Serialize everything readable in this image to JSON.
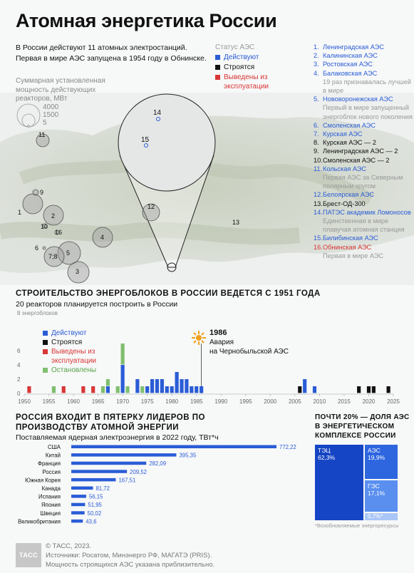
{
  "title": "Атомная энергетика России",
  "intro": "В России действуют 11 атомных электростанций. Первая в мире АЭС запущена в 1954 году в Обнинске.",
  "capacity_legend": {
    "label": "Суммарная установленная мощность действующих реакторов, МВт",
    "values": [
      "4000",
      "1500",
      "5"
    ]
  },
  "status_legend": {
    "title": "Статус АЭС",
    "items": [
      {
        "label": "Действуют",
        "color": "#2a5cd6"
      },
      {
        "label": "Строятся",
        "color": "#111111"
      },
      {
        "label": "Выведены из эксплуатации",
        "color": "#d93636"
      }
    ]
  },
  "plants": [
    {
      "num": "1.",
      "name": "Ленинградская АЭС",
      "status": "active"
    },
    {
      "num": "2.",
      "name": "Калининская АЭС",
      "status": "active"
    },
    {
      "num": "3.",
      "name": "Ростовская АЭС",
      "status": "active"
    },
    {
      "num": "4.",
      "name": "Балаковская АЭС",
      "status": "active",
      "note": "19 раз признавалась лучшей в мире"
    },
    {
      "num": "5.",
      "name": "Нововоронежская АЭС",
      "status": "active",
      "note": "Первый в мире запущенный энергоблок нового поколения"
    },
    {
      "num": "6.",
      "name": "Смоленская АЭС",
      "status": "active"
    },
    {
      "num": "7.",
      "name": "Курская АЭС",
      "status": "active"
    },
    {
      "num": "8.",
      "name": "Курская АЭС — 2",
      "status": "building"
    },
    {
      "num": "9.",
      "name": "Ленинградская АЭС — 2",
      "status": "building"
    },
    {
      "num": "10.",
      "name": "Смоленская АЭС — 2",
      "status": "building"
    },
    {
      "num": "11.",
      "name": "Кольская АЭС",
      "status": "active",
      "note": "Первая АЭС за Северным полярным кругом"
    },
    {
      "num": "12.",
      "name": "Белоярская АЭС",
      "status": "active"
    },
    {
      "num": "13.",
      "name": "Брест-ОД-300",
      "status": "building"
    },
    {
      "num": "14.",
      "name": "ПАТЭС академик Ломоносов",
      "status": "active",
      "note": "Единственная в мире плавучая атомная станция"
    },
    {
      "num": "15.",
      "name": "Билибинская АЭС",
      "status": "active"
    },
    {
      "num": "16.",
      "name": "Обнинская АЭС",
      "status": "retired",
      "note": "Первая в мире АЭС"
    }
  ],
  "map_labels": [
    "1",
    "2",
    "3",
    "4",
    "5",
    "6",
    "7;8",
    "9",
    "10",
    "11",
    "12",
    "13",
    "14",
    "15",
    "16"
  ],
  "section1": {
    "title": "СТРОИТЕЛЬСТВО ЭНЕРГОБЛОКОВ В РОССИИ ВЕДЕТСЯ С 1951 ГОДА",
    "subtitle": "20 реакторов планируется построить в России"
  },
  "hist_legend": [
    {
      "label": "Действуют",
      "color": "#2a5cd6"
    },
    {
      "label": "Строятся",
      "color": "#111111"
    },
    {
      "label": "Выведены из эксплуатации",
      "color": "#d93636"
    },
    {
      "label": "Остановлены",
      "color": "#7fbf6e"
    }
  ],
  "chernobyl": {
    "year": "1986",
    "line1": "Авария",
    "line2": "на Чернобыльской АЭС"
  },
  "section2": {
    "title": "РОССИЯ ВХОДИТ В ПЯТЕРКУ ЛИДЕРОВ ПО ПРОИЗВОДСТВУ АТОМНОЙ ЭНЕРГИИ",
    "subtitle": "Поставляемая ядерная электроэнергия в 2022 году, ТВт*ч"
  },
  "section3": {
    "title": "ПОЧТИ 20% — ДОЛЯ АЭС В ЭНЕРГЕТИЧЕСКОМ КОМПЛЕКСЕ РОССИИ"
  },
  "energy_mix": [
    {
      "label": "ТЭЦ",
      "value": "62,3%",
      "color": "#1545c4"
    },
    {
      "label": "АЭС",
      "value": "19,9%",
      "color": "#2e66e0"
    },
    {
      "label": "ГЭС",
      "value": "17,1%",
      "color": "#5a8ff0"
    },
    {
      "label": "",
      "value": "0,7%*",
      "color": "#a9c6f7"
    }
  ],
  "mix_note": "*Возобновляемые энергоресурсы",
  "footer": {
    "logo": "ТАСС",
    "lines": [
      "© ТАСС, 2023.",
      "Источники: Росатом, Минэнерго РФ, МАГАТЭ (PRIS).",
      "Мощность строящихся АЭС указана приблизительно."
    ]
  },
  "chart_data": [
    {
      "type": "bar",
      "title": "СТРОИТЕЛЬСТВО ЭНЕРГОБЛОКОВ В РОССИИ ВЕДЕТСЯ С 1951 ГОДА",
      "ylabel": "энергоблоков",
      "ylim": [
        0,
        8
      ],
      "yticks": [
        "0",
        "2",
        "4",
        "6",
        "8"
      ],
      "xticks": [
        "1950",
        "1955",
        "1960",
        "1965",
        "1970",
        "1975",
        "1980",
        "1985",
        "1990",
        "1995",
        "2000",
        "2005",
        "2010",
        "2015",
        "2020",
        "2025"
      ],
      "grid": false,
      "legend": "left",
      "years": [
        1951,
        1956,
        1958,
        1962,
        1964,
        1966,
        1967,
        1969,
        1970,
        1971,
        1972,
        1973,
        1974,
        1975,
        1976,
        1977,
        1978,
        1979,
        1980,
        1981,
        1982,
        1983,
        1984,
        1985,
        1986,
        2006,
        2007,
        2008,
        2009,
        2010,
        2018,
        2020,
        2021,
        2024
      ],
      "series": [
        {
          "name": "Действуют",
          "values": [
            0,
            0,
            0,
            0,
            0,
            0,
            1,
            0,
            4,
            0,
            0,
            2,
            0,
            1,
            2,
            2,
            2,
            1,
            1,
            3,
            2,
            2,
            1,
            1,
            1,
            0,
            2,
            0,
            1,
            0,
            0,
            0,
            0,
            0
          ]
        },
        {
          "name": "Строятся",
          "values": [
            0,
            0,
            0,
            0,
            0,
            0,
            0,
            0,
            0,
            0,
            0,
            0,
            0,
            0,
            0,
            0,
            0,
            0,
            0,
            0,
            0,
            0,
            0,
            0,
            0,
            1,
            0,
            0,
            0,
            0,
            1,
            1,
            1,
            1
          ]
        },
        {
          "name": "Выведены из эксплуатации",
          "values": [
            1,
            0,
            1,
            1,
            1,
            0,
            0,
            0,
            0,
            0,
            0,
            0,
            0,
            0,
            0,
            0,
            0,
            0,
            0,
            0,
            0,
            0,
            0,
            0,
            0,
            0,
            0,
            0,
            0,
            0,
            0,
            0,
            0,
            0
          ]
        },
        {
          "name": "Остановлены",
          "values": [
            0,
            1,
            0,
            0,
            0,
            1,
            1,
            1,
            3,
            1,
            0,
            0,
            1,
            0,
            0,
            0,
            0,
            0,
            0,
            0,
            0,
            0,
            0,
            0,
            0,
            0,
            0,
            0,
            0,
            0,
            0,
            0,
            0,
            0
          ]
        }
      ]
    },
    {
      "type": "bar",
      "title": "РОССИЯ ВХОДИТ В ПЯТЕРКУ ЛИДЕРОВ ПО ПРОИЗВОДСТВУ АТОМНОЙ ЭНЕРГИИ",
      "subtitle": "Поставляемая ядерная электроэнергия в 2022 году, ТВт*ч",
      "orientation": "horizontal",
      "categories": [
        "США",
        "Китай",
        "Франция",
        "Россия",
        "Южная Корея",
        "Канада",
        "Испания",
        "Япония",
        "Швеция",
        "Великобритания"
      ],
      "values": [
        772.22,
        395.35,
        282.09,
        209.52,
        167.51,
        81.72,
        56.15,
        51.95,
        50.02,
        43.6
      ],
      "value_labels": [
        "772,22",
        "395,35",
        "282,09",
        "209,52",
        "167,51",
        "81,72",
        "56,15",
        "51,95",
        "50,02",
        "43,6"
      ],
      "color": "#2a5cd6"
    }
  ]
}
